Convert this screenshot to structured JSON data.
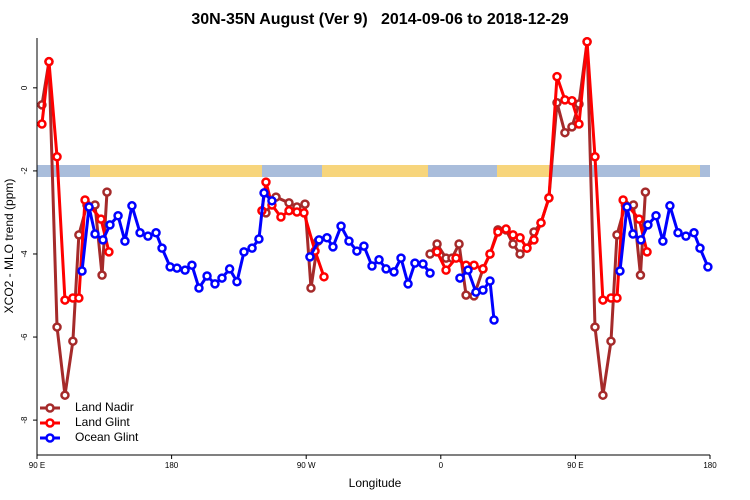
{
  "chart_data": {
    "type": "line",
    "title": "30N-35N August (Ver 9)   2014-09-06 to 2018-12-29",
    "xlabel": "Longitude",
    "ylabel": "XCO2 - MLO trend (ppm)",
    "xlim": [
      90,
      540
    ],
    "ylim": [
      -8.84,
      1.2
    ],
    "xticks": [
      {
        "value": 90,
        "label": "90 E"
      },
      {
        "value": 180,
        "label": "180"
      },
      {
        "value": 270,
        "label": "90 W"
      },
      {
        "value": 360,
        "label": "0"
      },
      {
        "value": 450,
        "label": "90 E"
      },
      {
        "value": 540,
        "label": "180"
      }
    ],
    "yticks": [
      0,
      -2,
      -4,
      -6,
      -8
    ],
    "legend": "lower left",
    "series": [
      {
        "name": "Land Nadir",
        "color": "#a52a2a",
        "x": [
          93.3,
          98,
          103.4,
          108.7,
          114,
          118,
          123.4,
          128.8,
          133.5,
          136.8,
          190,
          243.1,
          249.8,
          258.5,
          263.8,
          269.2,
          273.2,
          277.9,
          315,
          352.8,
          357.5,
          363.5,
          367.5,
          372.2,
          376.9,
          382.2,
          388.2,
          392.9,
          398.2,
          403.6,
          408.3,
          413,
          417.6,
          422.3,
          427,
          432.3,
          437.7,
          443,
          447.7,
          452.4,
          457.8,
          463.1,
          468.4,
          473.8,
          477.8,
          483.4,
          488.8,
          493.5,
          496.8
        ],
        "values": [
          -0.41,
          0.63,
          -5.76,
          -7.4,
          -6.1,
          -3.54,
          -2.82,
          -2.82,
          -4.51,
          -2.51,
          null,
          -3.01,
          -2.63,
          -2.77,
          -2.87,
          -2.8,
          -4.82,
          -3.69,
          null,
          -4.0,
          -3.76,
          -4.1,
          -4.1,
          -3.76,
          -4.99,
          -5.01,
          -4.36,
          -4.0,
          -3.42,
          -3.42,
          -3.76,
          -4.0,
          -3.86,
          -3.47,
          -3.25,
          -2.65,
          -0.36,
          -1.08,
          -0.94,
          -0.39,
          1.11,
          -5.76,
          -7.4,
          -6.1,
          -3.54,
          -2.82,
          -2.82,
          -4.51,
          -2.51
        ]
      },
      {
        "name": "Land Glint",
        "color": "#ff0000",
        "x": [
          93.3,
          98,
          103.4,
          108.7,
          114,
          118,
          122.1,
          132.8,
          138.1,
          190,
          240.4,
          243.1,
          247.1,
          253.1,
          258.5,
          263.8,
          268.5,
          275.9,
          281.9,
          320,
          357.5,
          363.5,
          370.2,
          376.9,
          382.2,
          388.2,
          392.9,
          398.2,
          403.6,
          408.3,
          413,
          417.6,
          422.3,
          427,
          432.3,
          437.7,
          443,
          447.7,
          452.4,
          457.8,
          463.1,
          468.4,
          473.8,
          477.8,
          481.9,
          492.6,
          497.9
        ],
        "values": [
          -0.87,
          0.63,
          -1.66,
          -5.11,
          -5.06,
          -5.06,
          -2.7,
          -3.16,
          -3.95,
          null,
          -2.96,
          -2.27,
          -2.82,
          -3.11,
          -2.96,
          -2.99,
          -3.01,
          -3.93,
          -4.55,
          null,
          -3.95,
          -4.39,
          -4.1,
          -4.27,
          -4.27,
          -4.36,
          -4.0,
          -3.47,
          -3.4,
          -3.54,
          -3.61,
          -3.86,
          -3.66,
          -3.25,
          -2.65,
          0.27,
          -0.29,
          -0.31,
          -0.87,
          1.11,
          -1.66,
          -5.11,
          -5.06,
          -5.06,
          -2.7,
          -3.16,
          -3.95
        ]
      },
      {
        "name": "Ocean Glint",
        "color": "#0000ff",
        "x": [
          120.1,
          124.8,
          128.8,
          134.1,
          138.8,
          144.2,
          148.8,
          153.5,
          158.9,
          164.2,
          169.6,
          173.6,
          179,
          183.6,
          189,
          193.6,
          198.3,
          203.7,
          209,
          213.7,
          218.8,
          223.7,
          228.4,
          233.8,
          238.4,
          241.8,
          247.1,
          260,
          272.5,
          278.6,
          283.9,
          287.9,
          293.3,
          298.6,
          303.9,
          308.6,
          314,
          318.7,
          323.4,
          328.7,
          333.4,
          338.1,
          342.7,
          348.1,
          352.8,
          362,
          372.8,
          378.2,
          383.5,
          388.2,
          392.9,
          395.6,
          440,
          479.8,
          484.5,
          488.5,
          493.8,
          498.5,
          503.9,
          508.5,
          513.2,
          518.6,
          523.9,
          529.3,
          533.3,
          538.6
        ],
        "values": [
          -4.41,
          -2.87,
          -3.52,
          -3.66,
          -3.3,
          -3.08,
          -3.69,
          -2.84,
          -3.49,
          -3.57,
          -3.49,
          -3.86,
          -4.31,
          -4.34,
          -4.39,
          -4.27,
          -4.82,
          -4.53,
          -4.72,
          -4.58,
          -4.36,
          -4.67,
          -3.95,
          -3.86,
          -3.64,
          -2.53,
          -2.72,
          null,
          -4.07,
          -3.66,
          -3.61,
          -3.83,
          -3.33,
          -3.69,
          -3.93,
          -3.81,
          -4.29,
          -4.14,
          -4.36,
          -4.43,
          -4.1,
          -4.72,
          -4.22,
          -4.24,
          -4.46,
          null,
          -4.58,
          -4.39,
          -4.92,
          -4.87,
          -4.65,
          -5.59,
          null,
          -4.41,
          -2.87,
          -3.52,
          -3.66,
          -3.3,
          -3.08,
          -3.69,
          -2.84,
          -3.49,
          -3.57,
          -3.49,
          -3.86,
          -4.31
        ]
      }
    ]
  }
}
